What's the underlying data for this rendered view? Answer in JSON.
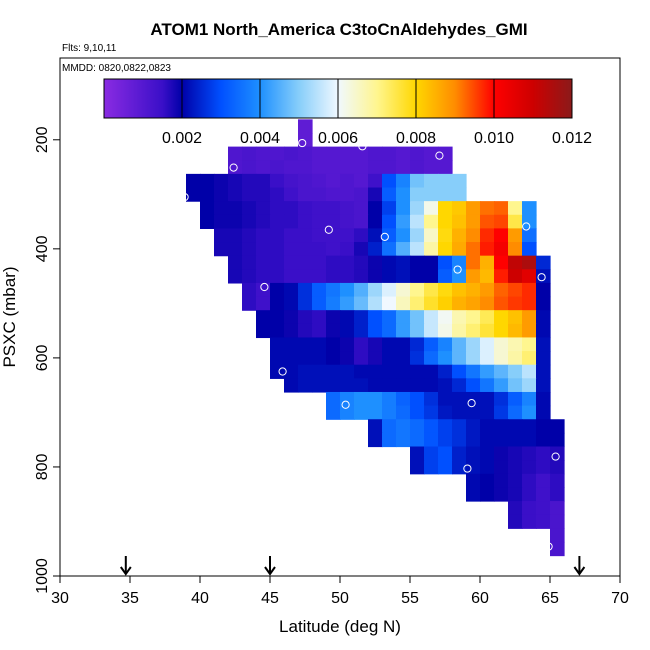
{
  "chart_data": {
    "type": "heatmap",
    "title": "ATOM1 North_America C3toCnAldehydes_GMI",
    "flights_note": "Flts: 9,10,11",
    "dates_note": "MMDD: 0820,0822,0823",
    "xlabel": "Latitude (deg N)",
    "ylabel": "PSXC (mbar)",
    "xlim": [
      30,
      70
    ],
    "ylim": [
      1000,
      50
    ],
    "x_ticks": [
      "30",
      "35",
      "40",
      "45",
      "50",
      "55",
      "60",
      "65",
      "70"
    ],
    "x_tick_values": [
      30,
      35,
      40,
      45,
      50,
      55,
      60,
      65,
      70
    ],
    "y_ticks": [
      "200",
      "400",
      "600",
      "800",
      "1000"
    ],
    "y_tick_values": [
      200,
      400,
      600,
      800,
      1000
    ],
    "colorbar": {
      "min": 0.0,
      "max": 0.012,
      "tick_labels": [
        "0.002",
        "0.004",
        "0.006",
        "0.008",
        "0.010",
        "0.012"
      ],
      "tick_values": [
        0.002,
        0.004,
        0.006,
        0.008,
        0.01,
        0.012
      ]
    },
    "colormap_stops": [
      {
        "v": 0.0,
        "c": "#8a2be2"
      },
      {
        "v": 0.0015,
        "c": "#3a0fc8"
      },
      {
        "v": 0.002,
        "c": "#0000a8"
      },
      {
        "v": 0.003,
        "c": "#0050ff"
      },
      {
        "v": 0.004,
        "c": "#1e90ff"
      },
      {
        "v": 0.005,
        "c": "#87cefa"
      },
      {
        "v": 0.006,
        "c": "#f0f8ff"
      },
      {
        "v": 0.007,
        "c": "#fff68f"
      },
      {
        "v": 0.008,
        "c": "#ffd700"
      },
      {
        "v": 0.009,
        "c": "#ff8c00"
      },
      {
        "v": 0.01,
        "c": "#ff0000"
      },
      {
        "v": 0.011,
        "c": "#cd0000"
      },
      {
        "v": 0.012,
        "c": "#8b1a1a"
      }
    ],
    "cell_width_deg": 1,
    "cell_height_mbar": 25,
    "rows": [
      {
        "p": 175,
        "x0": 47,
        "values": [
          0.0008
        ]
      },
      {
        "p": 200,
        "x0": 47,
        "values": [
          0.0008
        ]
      },
      {
        "p": 225,
        "x0": 42,
        "values": [
          0.0011,
          0.0012,
          0.0011,
          0.0011,
          0.0012,
          0.0011,
          0.001,
          0.001,
          0.001,
          0.001,
          0.0011,
          0.0011,
          0.001,
          0.0011,
          0.001,
          0.001
        ]
      },
      {
        "p": 250,
        "x0": 42,
        "values": [
          0.0011,
          0.0012,
          0.0011,
          0.0012,
          0.0011,
          0.0011,
          0.001,
          0.001,
          0.001,
          0.001,
          0.0011,
          0.0011,
          0.001,
          0.0011,
          0.001,
          0.001
        ]
      },
      {
        "p": 275,
        "x0": 39,
        "values": [
          0.002,
          0.002,
          0.0019,
          0.0018,
          0.0017,
          0.0017,
          0.0015,
          0.0013,
          0.0012,
          0.0011,
          0.001,
          0.0011,
          0.001,
          0.0014,
          0.003,
          0.0038,
          0.0048,
          0.005,
          0.005,
          0.005
        ]
      },
      {
        "p": 300,
        "x0": 39,
        "values": [
          0.002,
          0.002,
          0.0019,
          0.0018,
          0.0017,
          0.0017,
          0.0016,
          0.0014,
          0.0012,
          0.0012,
          0.0011,
          0.0011,
          0.0012,
          0.0018,
          0.0032,
          0.004,
          0.005,
          0.005,
          0.005,
          0.005
        ]
      },
      {
        "p": 325,
        "x0": 40,
        "values": [
          0.002,
          0.0019,
          0.0019,
          0.0018,
          0.0017,
          0.0016,
          0.0016,
          0.0015,
          0.0014,
          0.0014,
          0.0013,
          0.0012,
          0.002,
          0.0028,
          0.004,
          0.0052,
          0.0062,
          0.008,
          0.0082,
          0.0088,
          0.0092,
          0.0093,
          0.007,
          0.004
        ]
      },
      {
        "p": 350,
        "x0": 40,
        "values": [
          0.002,
          0.0019,
          0.0019,
          0.0018,
          0.0017,
          0.0016,
          0.0016,
          0.0015,
          0.0014,
          0.0014,
          0.0013,
          0.0012,
          0.002,
          0.003,
          0.0042,
          0.0055,
          0.007,
          0.008,
          0.0083,
          0.0088,
          0.0094,
          0.0095,
          0.0075,
          0.004
        ]
      },
      {
        "p": 375,
        "x0": 41,
        "values": [
          0.0018,
          0.0018,
          0.0017,
          0.0016,
          0.0016,
          0.0015,
          0.0015,
          0.0014,
          0.0014,
          0.0014,
          0.0016,
          0.0022,
          0.0032,
          0.004,
          0.0052,
          0.0065,
          0.0079,
          0.0085,
          0.009,
          0.0097,
          0.01,
          0.0088,
          0.0035
        ]
      },
      {
        "p": 400,
        "x0": 41,
        "values": [
          0.0018,
          0.0018,
          0.0017,
          0.0016,
          0.0016,
          0.0015,
          0.0015,
          0.0015,
          0.0014,
          0.0015,
          0.0018,
          0.0024,
          0.0035,
          0.0045,
          0.0055,
          0.0068,
          0.008,
          0.0086,
          0.0092,
          0.0098,
          0.0102,
          0.009,
          0.003
        ]
      },
      {
        "p": 425,
        "x0": 42,
        "values": [
          0.0018,
          0.0017,
          0.0016,
          0.0016,
          0.0015,
          0.0015,
          0.0015,
          0.0016,
          0.0016,
          0.0017,
          0.0019,
          0.0021,
          0.0022,
          0.002,
          0.002,
          0.003,
          0.0038,
          0.0092,
          0.0085,
          0.01,
          0.0112,
          0.0115,
          0.0025
        ]
      },
      {
        "p": 450,
        "x0": 42,
        "values": [
          0.0018,
          0.0017,
          0.0016,
          0.0016,
          0.0015,
          0.0015,
          0.0015,
          0.0016,
          0.0016,
          0.0017,
          0.0019,
          0.0021,
          0.0022,
          0.002,
          0.002,
          0.0032,
          0.004,
          0.0088,
          0.0084,
          0.0098,
          0.011,
          0.0106,
          0.0022
        ]
      },
      {
        "p": 475,
        "x0": 43,
        "values": [
          0.0016,
          0.0014,
          0.002,
          0.0021,
          0.0026,
          0.0032,
          0.0036,
          0.004,
          0.0045,
          0.0052,
          0.0058,
          0.0064,
          0.007,
          0.0075,
          0.0079,
          0.0083,
          0.0085,
          0.0088,
          0.0093,
          0.0095,
          0.0097,
          0.002
        ]
      },
      {
        "p": 500,
        "x0": 43,
        "values": [
          0.0016,
          0.0014,
          0.002,
          0.0021,
          0.0026,
          0.0032,
          0.0037,
          0.0042,
          0.0047,
          0.0054,
          0.006,
          0.0066,
          0.0072,
          0.0077,
          0.0081,
          0.0085,
          0.0087,
          0.009,
          0.0094,
          0.0096,
          0.0097,
          0.002
        ]
      },
      {
        "p": 525,
        "x0": 44,
        "values": [
          0.002,
          0.002,
          0.0019,
          0.0017,
          0.0016,
          0.0019,
          0.0021,
          0.0024,
          0.003,
          0.0034,
          0.0042,
          0.0048,
          0.0056,
          0.0061,
          0.0067,
          0.007,
          0.0074,
          0.008,
          0.0083,
          0.0088,
          0.0021
        ]
      },
      {
        "p": 550,
        "x0": 44,
        "values": [
          0.002,
          0.002,
          0.0019,
          0.0017,
          0.0016,
          0.0019,
          0.0021,
          0.0024,
          0.003,
          0.0034,
          0.0042,
          0.0048,
          0.0056,
          0.0062,
          0.0068,
          0.0072,
          0.0076,
          0.008,
          0.0084,
          0.0088,
          0.0021
        ]
      },
      {
        "p": 575,
        "x0": 45,
        "values": [
          0.0021,
          0.0021,
          0.0021,
          0.0021,
          0.002,
          0.0019,
          0.0016,
          0.0018,
          0.0021,
          0.0021,
          0.0025,
          0.0032,
          0.0038,
          0.0046,
          0.0052,
          0.0058,
          0.0064,
          0.0067,
          0.007,
          0.0022
        ]
      },
      {
        "p": 600,
        "x0": 45,
        "values": [
          0.0021,
          0.0021,
          0.0021,
          0.0021,
          0.002,
          0.0019,
          0.0016,
          0.0018,
          0.0021,
          0.0021,
          0.0026,
          0.0034,
          0.004,
          0.0046,
          0.0052,
          0.0058,
          0.0064,
          0.0068,
          0.0072,
          0.0022
        ]
      },
      {
        "p": 625,
        "x0": 45,
        "values": [
          0.0021,
          0.0021,
          0.0022,
          0.0022,
          0.0022,
          0.0022,
          0.0021,
          0.0021,
          0.0021,
          0.0021,
          0.0021,
          0.0021,
          0.0024,
          0.003,
          0.0036,
          0.0042,
          0.0046,
          0.005,
          0.0055,
          0.0022
        ]
      },
      {
        "p": 650,
        "x0": 46,
        "values": [
          0.0021,
          0.0022,
          0.0022,
          0.0022,
          0.0022,
          0.0022,
          0.0021,
          0.0021,
          0.0021,
          0.0021,
          0.0021,
          0.0022,
          0.0025,
          0.003,
          0.0036,
          0.0042,
          0.0048,
          0.0052,
          0.0022
        ]
      },
      {
        "p": 675,
        "x0": 49,
        "values": [
          0.0034,
          0.0038,
          0.004,
          0.004,
          0.0037,
          0.0033,
          0.003,
          0.0026,
          0.0022,
          0.0022,
          0.0022,
          0.0022,
          0.0026,
          0.0032,
          0.0038,
          0.0021
        ]
      },
      {
        "p": 700,
        "x0": 49,
        "values": [
          0.0034,
          0.0038,
          0.004,
          0.004,
          0.0037,
          0.0034,
          0.003,
          0.0027,
          0.0023,
          0.0022,
          0.0022,
          0.0022,
          0.0027,
          0.0034,
          0.004,
          0.0021
        ]
      },
      {
        "p": 725,
        "x0": 52,
        "values": [
          0.0022,
          0.0034,
          0.0036,
          0.0034,
          0.0031,
          0.0028,
          0.0026,
          0.0023,
          0.0021,
          0.0021,
          0.0021,
          0.0021,
          0.002,
          0.002
        ]
      },
      {
        "p": 750,
        "x0": 52,
        "values": [
          0.0022,
          0.0034,
          0.0036,
          0.0034,
          0.0031,
          0.0028,
          0.0026,
          0.0023,
          0.0021,
          0.0021,
          0.0021,
          0.0021,
          0.002,
          0.002
        ]
      },
      {
        "p": 775,
        "x0": 55,
        "values": [
          0.0022,
          0.0028,
          0.003,
          0.0024,
          0.0022,
          0.0021,
          0.0019,
          0.0018,
          0.0017,
          0.0016,
          0.0017
        ]
      },
      {
        "p": 800,
        "x0": 55,
        "values": [
          0.0022,
          0.0028,
          0.003,
          0.0024,
          0.0022,
          0.0021,
          0.0019,
          0.0018,
          0.0017,
          0.0016,
          0.0017
        ]
      },
      {
        "p": 825,
        "x0": 59,
        "values": [
          0.0021,
          0.002,
          0.0019,
          0.0018,
          0.0016,
          0.0014,
          0.0016
        ]
      },
      {
        "p": 850,
        "x0": 59,
        "values": [
          0.0021,
          0.002,
          0.0019,
          0.0018,
          0.0016,
          0.0014,
          0.0016
        ]
      },
      {
        "p": 875,
        "x0": 62,
        "values": [
          0.0017,
          0.0015,
          0.0014,
          0.0012
        ]
      },
      {
        "p": 900,
        "x0": 62,
        "values": [
          0.0017,
          0.0015,
          0.0014,
          0.0012
        ]
      },
      {
        "p": 925,
        "x0": 65,
        "values": [
          0.0012
        ]
      },
      {
        "p": 950,
        "x0": 65,
        "values": [
          0.0012
        ]
      }
    ],
    "points": [
      {
        "x": 47.3,
        "p": 206
      },
      {
        "x": 51.6,
        "p": 212
      },
      {
        "x": 57.1,
        "p": 229
      },
      {
        "x": 42.4,
        "p": 251
      },
      {
        "x": 38.9,
        "p": 305
      },
      {
        "x": 49.2,
        "p": 365
      },
      {
        "x": 53.2,
        "p": 378
      },
      {
        "x": 63.3,
        "p": 359
      },
      {
        "x": 65.8,
        "p": 359
      },
      {
        "x": 58.4,
        "p": 438
      },
      {
        "x": 64.4,
        "p": 452
      },
      {
        "x": 44.6,
        "p": 470
      },
      {
        "x": 45.9,
        "p": 625
      },
      {
        "x": 50.4,
        "p": 686
      },
      {
        "x": 59.4,
        "p": 683
      },
      {
        "x": 65.4,
        "p": 781
      },
      {
        "x": 59.1,
        "p": 803
      },
      {
        "x": 64.9,
        "p": 946
      }
    ],
    "arrows_latitude": [
      34.7,
      45.0,
      67.1
    ]
  }
}
